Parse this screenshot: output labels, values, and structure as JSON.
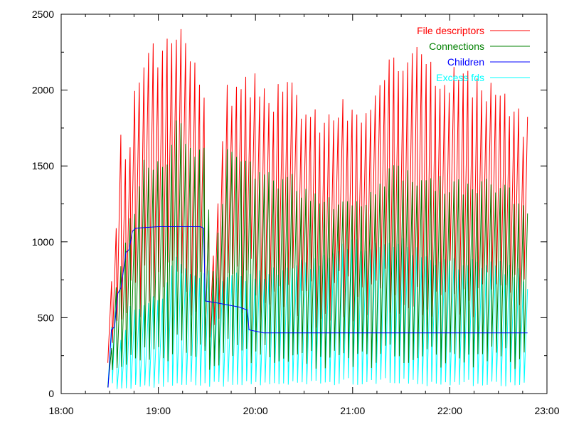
{
  "chart_data": {
    "type": "line",
    "title": "",
    "xlabel": "",
    "ylabel": "",
    "x_range": [
      "18:00",
      "23:00"
    ],
    "xlim_hours": [
      18,
      23
    ],
    "ylim": [
      0,
      2500
    ],
    "x_ticks": [
      "18:00",
      "19:00",
      "20:00",
      "21:00",
      "22:00",
      "23:00"
    ],
    "y_ticks": [
      "0",
      "500",
      "1000",
      "1500",
      "2000",
      "2500"
    ],
    "grid": false,
    "legend_position": "top-right",
    "series": [
      {
        "name": "File descriptors",
        "color": "#ff0000",
        "style": "sawtooth",
        "start_hour": 18.48,
        "end_hour": 22.8,
        "points": [
          [
            "18:29",
            760
          ],
          [
            "18:30",
            1320
          ],
          [
            "18:32",
            1000
          ],
          [
            "18:35",
            1830
          ],
          [
            "18:38",
            1400
          ],
          [
            "18:41",
            1750
          ],
          [
            "18:45",
            2090
          ],
          [
            "18:50",
            2140
          ],
          [
            "18:55",
            2260
          ],
          [
            "19:00",
            2200
          ],
          [
            "19:05",
            2350
          ],
          [
            "19:09",
            2460
          ],
          [
            "19:15",
            2380
          ],
          [
            "19:20",
            2260
          ],
          [
            "19:27",
            1820
          ],
          [
            "19:30",
            740
          ],
          [
            "19:40",
            2000
          ],
          [
            "19:50",
            2010
          ],
          [
            "20:00",
            2050
          ],
          [
            "20:10",
            1960
          ],
          [
            "20:20",
            2010
          ],
          [
            "20:30",
            1850
          ],
          [
            "20:40",
            1780
          ],
          [
            "20:50",
            1900
          ],
          [
            "21:00",
            1820
          ],
          [
            "21:10",
            1900
          ],
          [
            "21:20",
            2120
          ],
          [
            "21:30",
            2200
          ],
          [
            "21:37",
            2420
          ],
          [
            "21:45",
            2190
          ],
          [
            "21:55",
            2100
          ],
          [
            "22:05",
            2130
          ],
          [
            "22:15",
            1990
          ],
          [
            "22:25",
            2050
          ],
          [
            "22:35",
            1870
          ],
          [
            "22:48",
            1750
          ]
        ]
      },
      {
        "name": "Connections",
        "color": "#008000",
        "style": "sawtooth",
        "start_hour": 18.48,
        "end_hour": 22.8,
        "points": [
          [
            "18:29",
            300
          ],
          [
            "18:32",
            760
          ],
          [
            "18:40",
            1100
          ],
          [
            "18:50",
            1600
          ],
          [
            "19:00",
            1500
          ],
          [
            "19:10",
            1780
          ],
          [
            "19:20",
            1580
          ],
          [
            "19:28",
            1620
          ],
          [
            "19:30",
            640
          ],
          [
            "19:40",
            1550
          ],
          [
            "20:00",
            1490
          ],
          [
            "20:20",
            1400
          ],
          [
            "20:40",
            1300
          ],
          [
            "21:00",
            1250
          ],
          [
            "21:20",
            1480
          ],
          [
            "21:40",
            1450
          ],
          [
            "22:00",
            1370
          ],
          [
            "22:20",
            1380
          ],
          [
            "22:40",
            1300
          ],
          [
            "22:48",
            1150
          ]
        ]
      },
      {
        "name": "Children",
        "color": "#0000ff",
        "style": "step",
        "start_hour": 18.48,
        "end_hour": 22.8,
        "points": [
          [
            "18:29",
            40
          ],
          [
            "18:31",
            420
          ],
          [
            "18:33",
            440
          ],
          [
            "18:35",
            660
          ],
          [
            "18:37",
            700
          ],
          [
            "18:40",
            930
          ],
          [
            "18:42",
            950
          ],
          [
            "18:44",
            1070
          ],
          [
            "18:46",
            1090
          ],
          [
            "19:00",
            1100
          ],
          [
            "19:26",
            1100
          ],
          [
            "19:28",
            1090
          ],
          [
            "19:29",
            610
          ],
          [
            "19:35",
            600
          ],
          [
            "19:50",
            570
          ],
          [
            "19:55",
            550
          ],
          [
            "19:56",
            420
          ],
          [
            "20:05",
            400
          ],
          [
            "22:48",
            400
          ]
        ]
      },
      {
        "name": "Excess fds",
        "color": "#00ffff",
        "style": "sawtooth",
        "start_hour": 18.48,
        "end_hour": 22.8,
        "points": [
          [
            "18:29",
            460
          ],
          [
            "18:31",
            760
          ],
          [
            "18:35",
            300
          ],
          [
            "18:40",
            600
          ],
          [
            "18:45",
            560
          ],
          [
            "18:55",
            650
          ],
          [
            "19:00",
            600
          ],
          [
            "19:08",
            920
          ],
          [
            "19:15",
            830
          ],
          [
            "19:20",
            760
          ],
          [
            "19:28",
            860
          ],
          [
            "19:32",
            740
          ],
          [
            "19:40",
            780
          ],
          [
            "19:50",
            760
          ],
          [
            "20:00",
            790
          ],
          [
            "20:10",
            820
          ],
          [
            "20:20",
            860
          ],
          [
            "20:30",
            850
          ],
          [
            "20:40",
            900
          ],
          [
            "21:00",
            1000
          ],
          [
            "21:20",
            960
          ],
          [
            "21:30",
            1000
          ],
          [
            "21:40",
            910
          ],
          [
            "22:00",
            870
          ],
          [
            "22:20",
            870
          ],
          [
            "22:40",
            800
          ],
          [
            "22:48",
            620
          ]
        ]
      }
    ]
  }
}
